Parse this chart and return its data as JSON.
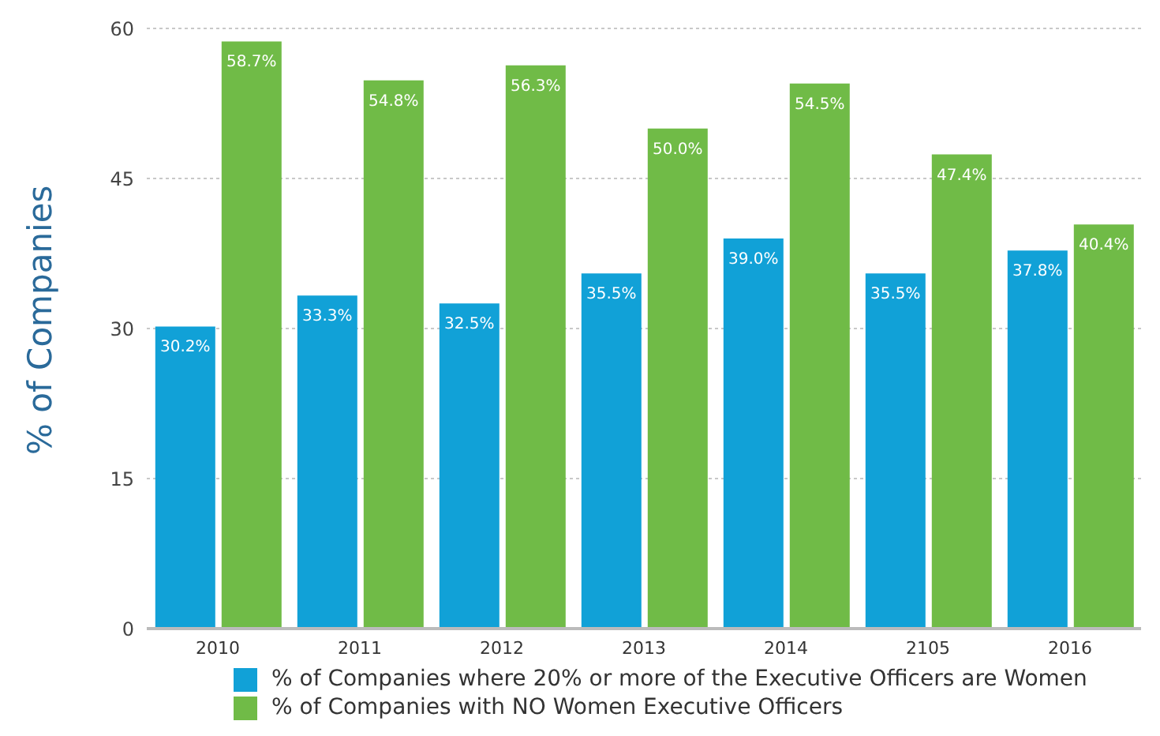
{
  "chart_data": {
    "type": "bar",
    "ylabel": "% of Companies",
    "categories": [
      "2010",
      "2011",
      "2012",
      "2013",
      "2014",
      "2105",
      "2016"
    ],
    "series": [
      {
        "name": "% of Companies where 20% or more of the Executive Officers are Women",
        "color": "#11a1d7",
        "values": [
          30.2,
          33.3,
          32.5,
          35.5,
          39.0,
          35.5,
          37.8
        ],
        "value_labels": [
          "30.2%",
          "33.3%",
          "32.5%",
          "35.5%",
          "39.0%",
          "35.5%",
          "37.8%"
        ]
      },
      {
        "name": "% of Companies with NO Women Executive Officers",
        "color": "#70bb47",
        "values": [
          58.7,
          54.8,
          56.3,
          50.0,
          54.5,
          47.4,
          40.4
        ],
        "value_labels": [
          "58.7%",
          "54.8%",
          "56.3%",
          "50.0%",
          "54.5%",
          "47.4%",
          "40.4%"
        ]
      }
    ],
    "ylim": [
      0,
      60
    ],
    "yticks": [
      0,
      15,
      30,
      45,
      60
    ],
    "grid": "y",
    "legend": "bottom"
  }
}
